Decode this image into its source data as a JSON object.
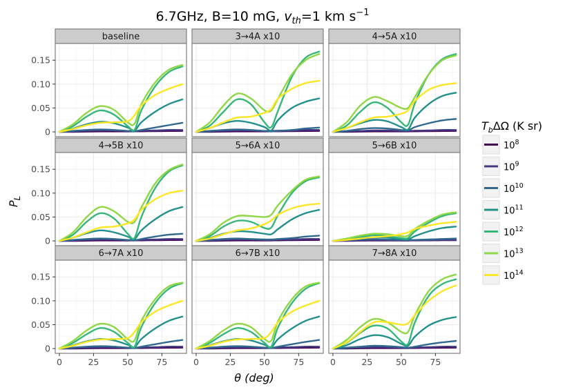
{
  "title": {
    "prefix": "6.7GHz, B=10 mG, ",
    "v_symbol": "v",
    "v_sub": "th",
    "v_value": "=1 km s",
    "v_exp": "−1"
  },
  "xlabel": "θ (deg)",
  "ylabel_main": "P",
  "ylabel_sub": "L",
  "legend": {
    "title": "T_bΔΩ (K sr)",
    "title_T": "T",
    "title_sub": "b",
    "title_rest": "ΔΩ (K sr)",
    "entries": [
      {
        "base": "10",
        "exp": "8",
        "color": "#440154"
      },
      {
        "base": "10",
        "exp": "9",
        "color": "#443a83"
      },
      {
        "base": "10",
        "exp": "10",
        "color": "#31688e"
      },
      {
        "base": "10",
        "exp": "11",
        "color": "#21908c"
      },
      {
        "base": "10",
        "exp": "12",
        "color": "#35b779"
      },
      {
        "base": "10",
        "exp": "13",
        "color": "#8fd744"
      },
      {
        "base": "10",
        "exp": "14",
        "color": "#fde725"
      }
    ]
  },
  "colors": {
    "strip_bg": "#cccccc",
    "panel_border": "#7f7f7f",
    "grid_major": "#ebebeb",
    "grid_minor": "#f5f5f5"
  },
  "chart_data": {
    "type": "line",
    "facet_titles": [
      "baseline",
      "3→4A x10",
      "4→5A x10",
      "4→5B x10",
      "5→6A x10",
      "5→6B x10",
      "6→7A x10",
      "6→7B x10",
      "7→8A x10"
    ],
    "xlim": [
      -3,
      93
    ],
    "ylim": [
      -0.01,
      0.185
    ],
    "x_ticks": [
      0,
      25,
      50,
      75
    ],
    "y_ticks": [
      0,
      0.05,
      0.1,
      0.15
    ],
    "y_tick_labels": [
      "0",
      "0.05",
      "0.10",
      "0.15"
    ],
    "x": [
      0,
      10,
      20,
      30,
      40,
      50,
      55,
      60,
      70,
      80,
      90
    ],
    "series_names": [
      "1e8",
      "1e9",
      "1e10",
      "1e11",
      "1e12",
      "1e13",
      "1e14"
    ],
    "panels": [
      {
        "title": "baseline",
        "series": [
          [
            0,
            0,
            0.0005,
            0.001,
            0.001,
            0.001,
            0.001,
            0.0012,
            0.0015,
            0.0018,
            0.002
          ],
          [
            0,
            0.001,
            0.002,
            0.003,
            0.003,
            0.002,
            0.002,
            0.0025,
            0.003,
            0.004,
            0.004
          ],
          [
            0,
            0.002,
            0.004,
            0.005,
            0.004,
            0.002,
            0.001,
            0.004,
            0.009,
            0.014,
            0.019
          ],
          [
            0,
            0.007,
            0.016,
            0.021,
            0.018,
            0.009,
            0.003,
            0.02,
            0.042,
            0.058,
            0.068
          ],
          [
            0,
            0.012,
            0.032,
            0.045,
            0.036,
            0.012,
            0.004,
            0.045,
            0.095,
            0.125,
            0.137
          ],
          [
            0,
            0.016,
            0.04,
            0.054,
            0.046,
            0.02,
            0.017,
            0.058,
            0.103,
            0.13,
            0.14
          ],
          [
            0,
            0.006,
            0.014,
            0.019,
            0.02,
            0.022,
            0.035,
            0.055,
            0.077,
            0.09,
            0.1
          ]
        ]
      },
      {
        "title": "3→4A x10",
        "series": [
          [
            0,
            0,
            0.0005,
            0.001,
            0.001,
            0.001,
            0.001,
            0.0012,
            0.0015,
            0.0018,
            0.002
          ],
          [
            0,
            0.001,
            0.002,
            0.003,
            0.003,
            0.002,
            0.002,
            0.0025,
            0.003,
            0.004,
            0.004
          ],
          [
            0,
            0.002,
            0.004,
            0.005,
            0.004,
            0.002,
            0.001,
            0.002,
            0.004,
            0.007,
            0.009
          ],
          [
            0,
            0.008,
            0.018,
            0.023,
            0.019,
            0.01,
            0.003,
            0.025,
            0.05,
            0.063,
            0.07
          ],
          [
            0,
            0.013,
            0.042,
            0.068,
            0.058,
            0.02,
            0.01,
            0.045,
            0.115,
            0.155,
            0.168
          ],
          [
            0,
            0.02,
            0.055,
            0.08,
            0.07,
            0.045,
            0.045,
            0.07,
            0.12,
            0.15,
            0.163
          ],
          [
            0,
            0.008,
            0.02,
            0.03,
            0.032,
            0.04,
            0.048,
            0.07,
            0.09,
            0.102,
            0.107
          ]
        ]
      },
      {
        "title": "4→5A x10",
        "series": [
          [
            0,
            0,
            0.0005,
            0.001,
            0.001,
            0.001,
            0.001,
            0.0012,
            0.0015,
            0.0018,
            0.002
          ],
          [
            0,
            0.001,
            0.002,
            0.003,
            0.003,
            0.002,
            0.002,
            0.0025,
            0.003,
            0.004,
            0.004
          ],
          [
            0,
            0.002,
            0.006,
            0.008,
            0.007,
            0.004,
            0.003,
            0.01,
            0.018,
            0.024,
            0.027
          ],
          [
            0,
            0.008,
            0.018,
            0.025,
            0.022,
            0.01,
            0.005,
            0.03,
            0.058,
            0.075,
            0.082
          ],
          [
            0,
            0.013,
            0.042,
            0.062,
            0.05,
            0.02,
            0.015,
            0.06,
            0.12,
            0.152,
            0.163
          ],
          [
            0,
            0.02,
            0.055,
            0.073,
            0.064,
            0.05,
            0.05,
            0.073,
            0.12,
            0.15,
            0.16
          ],
          [
            0,
            0.008,
            0.02,
            0.03,
            0.032,
            0.038,
            0.045,
            0.065,
            0.088,
            0.098,
            0.102
          ]
        ]
      },
      {
        "title": "4→5B x10",
        "series": [
          [
            0,
            0,
            0.0005,
            0.001,
            0.001,
            0.001,
            0.001,
            0.0012,
            0.0015,
            0.0018,
            0.002
          ],
          [
            0,
            0.001,
            0.002,
            0.003,
            0.003,
            0.002,
            0.002,
            0.0025,
            0.003,
            0.004,
            0.004
          ],
          [
            0,
            0.002,
            0.004,
            0.005,
            0.004,
            0.002,
            0.001,
            0.004,
            0.009,
            0.013,
            0.015
          ],
          [
            0,
            0.007,
            0.016,
            0.022,
            0.018,
            0.009,
            0.004,
            0.022,
            0.045,
            0.062,
            0.071
          ],
          [
            0,
            0.013,
            0.04,
            0.058,
            0.047,
            0.015,
            0.006,
            0.05,
            0.11,
            0.145,
            0.158
          ],
          [
            0,
            0.018,
            0.05,
            0.071,
            0.062,
            0.04,
            0.04,
            0.07,
            0.12,
            0.148,
            0.16
          ],
          [
            0,
            0.007,
            0.018,
            0.028,
            0.03,
            0.037,
            0.045,
            0.065,
            0.087,
            0.1,
            0.105
          ]
        ]
      },
      {
        "title": "5→6A x10",
        "series": [
          [
            0,
            0,
            0.0005,
            0.001,
            0.001,
            0.001,
            0.001,
            0.0012,
            0.0015,
            0.0018,
            0.002
          ],
          [
            0,
            0.001,
            0.002,
            0.003,
            0.003,
            0.002,
            0.002,
            0.0025,
            0.003,
            0.004,
            0.004
          ],
          [
            0,
            0.002,
            0.004,
            0.005,
            0.004,
            0.003,
            0.003,
            0.004,
            0.006,
            0.009,
            0.011
          ],
          [
            0,
            0.006,
            0.015,
            0.02,
            0.019,
            0.015,
            0.014,
            0.025,
            0.045,
            0.058,
            0.065
          ],
          [
            0,
            0.01,
            0.03,
            0.042,
            0.04,
            0.027,
            0.028,
            0.055,
            0.1,
            0.125,
            0.133
          ],
          [
            0,
            0.014,
            0.038,
            0.052,
            0.052,
            0.05,
            0.055,
            0.075,
            0.105,
            0.128,
            0.135
          ],
          [
            0,
            0.005,
            0.014,
            0.022,
            0.026,
            0.035,
            0.043,
            0.055,
            0.068,
            0.075,
            0.078
          ]
        ]
      },
      {
        "title": "5→6B x10",
        "series": [
          [
            0,
            0,
            0.0005,
            0.0008,
            0.0008,
            0.0008,
            0.0008,
            0.001,
            0.0012,
            0.0014,
            0.0015
          ],
          [
            0,
            0.0005,
            0.001,
            0.0015,
            0.0015,
            0.001,
            0.001,
            0.0015,
            0.0018,
            0.002,
            0.002
          ],
          [
            0,
            0.0015,
            0.003,
            0.004,
            0.003,
            0.002,
            0.002,
            0.002,
            0.003,
            0.004,
            0.005
          ],
          [
            0,
            0.003,
            0.006,
            0.008,
            0.007,
            0.004,
            0.003,
            0.01,
            0.02,
            0.027,
            0.03
          ],
          [
            0,
            0.004,
            0.009,
            0.012,
            0.01,
            0.006,
            0.006,
            0.02,
            0.038,
            0.052,
            0.058
          ],
          [
            0,
            0.005,
            0.011,
            0.015,
            0.014,
            0.01,
            0.011,
            0.025,
            0.042,
            0.055,
            0.06
          ],
          [
            0,
            0.002,
            0.005,
            0.008,
            0.01,
            0.014,
            0.018,
            0.025,
            0.032,
            0.037,
            0.04
          ]
        ]
      },
      {
        "title": "6→7A x10",
        "series": [
          [
            0,
            0,
            0.0005,
            0.001,
            0.001,
            0.001,
            0.001,
            0.0012,
            0.0015,
            0.0018,
            0.002
          ],
          [
            0,
            0.001,
            0.002,
            0.003,
            0.003,
            0.002,
            0.002,
            0.0025,
            0.003,
            0.004,
            0.004
          ],
          [
            0,
            0.002,
            0.004,
            0.005,
            0.004,
            0.002,
            0.001,
            0.004,
            0.009,
            0.014,
            0.018
          ],
          [
            0,
            0.007,
            0.015,
            0.02,
            0.017,
            0.008,
            0.003,
            0.02,
            0.042,
            0.058,
            0.067
          ],
          [
            0,
            0.012,
            0.03,
            0.043,
            0.035,
            0.012,
            0.004,
            0.045,
            0.095,
            0.125,
            0.137
          ],
          [
            0,
            0.016,
            0.038,
            0.052,
            0.045,
            0.02,
            0.017,
            0.058,
            0.103,
            0.13,
            0.138
          ],
          [
            0,
            0.006,
            0.014,
            0.019,
            0.02,
            0.022,
            0.035,
            0.055,
            0.077,
            0.09,
            0.1
          ]
        ]
      },
      {
        "title": "6→7B x10",
        "series": [
          [
            0,
            0,
            0.0005,
            0.001,
            0.001,
            0.001,
            0.001,
            0.0012,
            0.0015,
            0.0018,
            0.002
          ],
          [
            0,
            0.001,
            0.002,
            0.003,
            0.003,
            0.002,
            0.002,
            0.0025,
            0.003,
            0.004,
            0.004
          ],
          [
            0,
            0.002,
            0.004,
            0.005,
            0.004,
            0.002,
            0.001,
            0.004,
            0.009,
            0.014,
            0.018
          ],
          [
            0,
            0.007,
            0.015,
            0.02,
            0.017,
            0.008,
            0.003,
            0.02,
            0.042,
            0.058,
            0.067
          ],
          [
            0,
            0.012,
            0.03,
            0.043,
            0.035,
            0.012,
            0.004,
            0.045,
            0.095,
            0.125,
            0.137
          ],
          [
            0,
            0.016,
            0.038,
            0.052,
            0.045,
            0.02,
            0.017,
            0.058,
            0.103,
            0.13,
            0.138
          ],
          [
            0,
            0.006,
            0.014,
            0.019,
            0.02,
            0.022,
            0.035,
            0.055,
            0.077,
            0.09,
            0.1
          ]
        ]
      },
      {
        "title": "7→8A x10",
        "series": [
          [
            0,
            0,
            0.0005,
            0.001,
            0.001,
            0.001,
            0.001,
            0.0012,
            0.0015,
            0.0018,
            0.002
          ],
          [
            0,
            0.001,
            0.002,
            0.003,
            0.003,
            0.002,
            0.002,
            0.0025,
            0.003,
            0.004,
            0.004
          ],
          [
            0,
            0.002,
            0.004,
            0.006,
            0.005,
            0.003,
            0.002,
            0.004,
            0.009,
            0.013,
            0.016
          ],
          [
            0,
            0.007,
            0.02,
            0.028,
            0.024,
            0.01,
            0.006,
            0.025,
            0.048,
            0.06,
            0.066
          ],
          [
            0,
            0.012,
            0.033,
            0.048,
            0.042,
            0.015,
            0.01,
            0.055,
            0.11,
            0.135,
            0.145
          ],
          [
            0,
            0.018,
            0.045,
            0.062,
            0.055,
            0.035,
            0.035,
            0.07,
            0.12,
            0.145,
            0.155
          ],
          [
            0,
            0.013,
            0.035,
            0.055,
            0.055,
            0.05,
            0.053,
            0.07,
            0.1,
            0.12,
            0.132
          ]
        ]
      }
    ]
  }
}
